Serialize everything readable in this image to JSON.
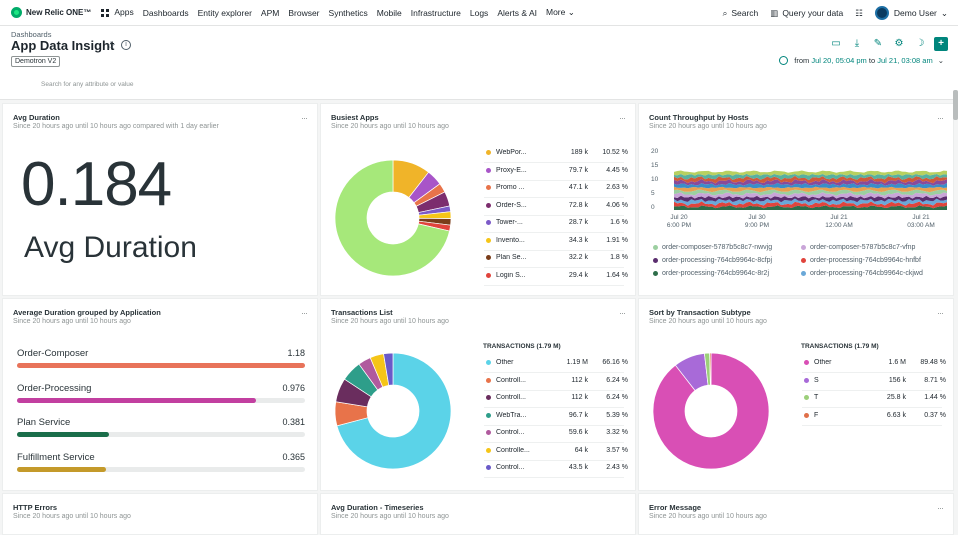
{
  "nav": {
    "brand": "New Relic ONE™",
    "items": [
      "Apps",
      "Dashboards",
      "Entity explorer",
      "APM",
      "Browser",
      "Synthetics",
      "Mobile",
      "Infrastructure",
      "Logs",
      "Alerts & AI",
      "More"
    ],
    "search": "Search",
    "query": "Query your data",
    "user": "Demo User"
  },
  "header": {
    "breadcrumb": "Dashboards",
    "title": "App Data Insight",
    "tag": "Demotron V2",
    "time_prefix": "from",
    "time_from": "Jul 20, 05:04 pm",
    "time_to_word": "to",
    "time_to": "Jul 21, 03:08 am"
  },
  "filter_placeholder": "Search for any attribute or value",
  "panels": {
    "avg_duration": {
      "title": "Avg Duration",
      "subtitle": "Since 20 hours ago until 10 hours ago compared with 1 day earlier",
      "value": "0.184",
      "label": "Avg Duration"
    },
    "busiest_apps": {
      "title": "Busiest Apps",
      "subtitle": "Since 20 hours ago until 10 hours ago",
      "rows": [
        {
          "name": "WebPor...",
          "value": "189 k",
          "pct": "10.52 %",
          "color": "#f0b429"
        },
        {
          "name": "Proxy-E...",
          "value": "79.7 k",
          "pct": "4.45 %",
          "color": "#a855c8"
        },
        {
          "name": "Promo ...",
          "value": "47.1 k",
          "pct": "2.63 %",
          "color": "#e8734a"
        },
        {
          "name": "Order-S...",
          "value": "72.8 k",
          "pct": "4.06 %",
          "color": "#7c2d6e"
        },
        {
          "name": "Tower-...",
          "value": "28.7 k",
          "pct": "1.6 %",
          "color": "#7c5ac8"
        },
        {
          "name": "Invento...",
          "value": "34.3 k",
          "pct": "1.91 %",
          "color": "#f5c518"
        },
        {
          "name": "Plan Se...",
          "value": "32.2 k",
          "pct": "1.8 %",
          "color": "#7a3d1a"
        },
        {
          "name": "Login S...",
          "value": "29.4 k",
          "pct": "1.64 %",
          "color": "#e0443c"
        }
      ]
    },
    "throughput": {
      "title": "Count Throughput by Hosts",
      "subtitle": "Since 20 hours ago until 10 hours ago",
      "yticks": [
        "20",
        "15",
        "10",
        "5",
        "0"
      ],
      "xticks": [
        "Jul 20\n6:00 PM",
        "Jul 30\n9:00 PM",
        "Jul 21\n12:00 AM",
        "Jul 21\n03:00 AM"
      ],
      "legend": [
        {
          "name": "order-composer-5787b5c8c7-nwvjg",
          "color": "#9ccfa0"
        },
        {
          "name": "order-composer-5787b5c8c7-vfnp",
          "color": "#c9a5d8"
        },
        {
          "name": "order-processing-764cb9964c-8cfpj",
          "color": "#5a2d6e"
        },
        {
          "name": "order-processing-764cb9964c-hnfbf",
          "color": "#e0443c"
        },
        {
          "name": "order-processing-764cb9964c-8r2j",
          "color": "#2e6e4a"
        },
        {
          "name": "order-processing-764cb9964c-ckjwd",
          "color": "#6aa8d8"
        }
      ]
    },
    "avg_by_app": {
      "title": "Average Duration grouped by Application",
      "subtitle": "Since 20 hours ago until 10 hours ago",
      "rows": [
        {
          "name": "Order-Composer",
          "value": "1.18",
          "frac": 1.0,
          "color": "#e8735a"
        },
        {
          "name": "Order-Processing",
          "value": "0.976",
          "frac": 0.83,
          "color": "#c23fa0"
        },
        {
          "name": "Plan Service",
          "value": "0.381",
          "frac": 0.32,
          "color": "#1a6e4a"
        },
        {
          "name": "Fulfillment Service",
          "value": "0.365",
          "frac": 0.31,
          "color": "#c49a2a"
        }
      ]
    },
    "transactions": {
      "title": "Transactions List",
      "subtitle": "Since 20 hours ago until 10 hours ago",
      "header": "TRANSACTIONS (1.79 M)",
      "rows": [
        {
          "name": "Other",
          "value": "1.19 M",
          "pct": "66.16 %",
          "color": "#5bd3e8"
        },
        {
          "name": "Controll...",
          "value": "112 k",
          "pct": "6.24 %",
          "color": "#e8734a"
        },
        {
          "name": "Controll...",
          "value": "112 k",
          "pct": "6.24 %",
          "color": "#6a2d5e"
        },
        {
          "name": "WebTra...",
          "value": "96.7 k",
          "pct": "5.39 %",
          "color": "#2e9e8a"
        },
        {
          "name": "Control...",
          "value": "59.6 k",
          "pct": "3.32 %",
          "color": "#b05a9e"
        },
        {
          "name": "Controlle...",
          "value": "64 k",
          "pct": "3.57 %",
          "color": "#f5c518"
        },
        {
          "name": "Control...",
          "value": "43.5 k",
          "pct": "2.43 %",
          "color": "#6a5ac8"
        }
      ]
    },
    "subtype": {
      "title": "Sort by Transaction Subtype",
      "subtitle": "Since 20 hours ago until 10 hours ago",
      "header": "TRANSACTIONS (1.79 M)",
      "rows": [
        {
          "name": "Other",
          "value": "1.6 M",
          "pct": "89.48 %",
          "color": "#d94fb5"
        },
        {
          "name": "S",
          "value": "156 k",
          "pct": "8.71 %",
          "color": "#a86ad8"
        },
        {
          "name": "T",
          "value": "25.8 k",
          "pct": "1.44 %",
          "color": "#9ccf7a"
        },
        {
          "name": "F",
          "value": "6.63 k",
          "pct": "0.37 %",
          "color": "#e0704a"
        }
      ]
    },
    "http_errors": {
      "title": "HTTP Errors",
      "subtitle": "Since 20 hours ago until 10 hours ago"
    },
    "avg_timeseries": {
      "title": "Avg Duration - Timeseries",
      "subtitle": "Since 20 hours ago until 10 hours ago"
    },
    "error_message": {
      "title": "Error Message",
      "subtitle": "Since 20 hours ago until 10 hours ago"
    }
  },
  "chart_data": [
    {
      "type": "pie",
      "title": "Busiest Apps",
      "categories": [
        "WebPor...",
        "Proxy-E...",
        "Promo ...",
        "Order-S...",
        "Tower-...",
        "Invento...",
        "Plan Se...",
        "Login S...",
        "Other"
      ],
      "values": [
        10.52,
        4.45,
        2.63,
        4.06,
        1.6,
        1.91,
        1.8,
        1.64,
        71.39
      ],
      "colors": [
        "#f0b429",
        "#a855c8",
        "#e8734a",
        "#7c2d6e",
        "#7c5ac8",
        "#f5c518",
        "#7a3d1a",
        "#e0443c",
        "#a6e87a"
      ]
    },
    {
      "type": "pie",
      "title": "Transactions List",
      "categories": [
        "Other",
        "Controll...",
        "Controll...",
        "WebTra...",
        "Control...",
        "Controlle...",
        "Control..."
      ],
      "values": [
        66.16,
        6.24,
        6.24,
        5.39,
        3.32,
        3.57,
        2.43
      ],
      "colors": [
        "#5bd3e8",
        "#e8734a",
        "#6a2d5e",
        "#2e9e8a",
        "#b05a9e",
        "#f5c518",
        "#6a5ac8"
      ]
    },
    {
      "type": "pie",
      "title": "Sort by Transaction Subtype",
      "categories": [
        "Other",
        "S",
        "T",
        "F"
      ],
      "values": [
        89.48,
        8.71,
        1.44,
        0.37
      ],
      "colors": [
        "#d94fb5",
        "#a86ad8",
        "#9ccf7a",
        "#e0704a"
      ]
    },
    {
      "type": "area",
      "title": "Count Throughput by Hosts",
      "ylim": [
        0,
        20
      ],
      "series_count": 6
    }
  ]
}
